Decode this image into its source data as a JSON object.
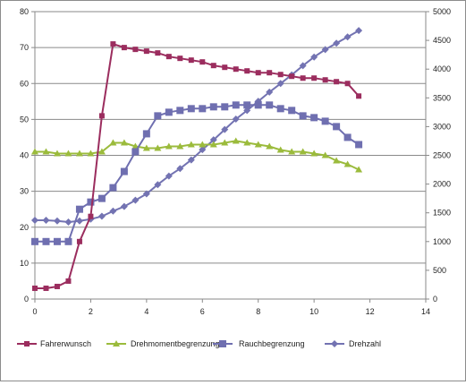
{
  "chart_data": {
    "type": "line",
    "title": "",
    "xlabel": "",
    "ylabel": "",
    "y2label": "",
    "xlim": [
      0,
      14
    ],
    "ylim": [
      0,
      80
    ],
    "y2lim": [
      0,
      5000
    ],
    "xticks": [
      "0",
      "2",
      "4",
      "6",
      "8",
      "10",
      "12",
      "14"
    ],
    "yticks": [
      "0",
      "10",
      "20",
      "30",
      "40",
      "50",
      "60",
      "70",
      "80"
    ],
    "y2ticks": [
      "0",
      "500",
      "1000",
      "1500",
      "2000",
      "2500",
      "3000",
      "3500",
      "4000",
      "4500",
      "5000"
    ],
    "grid": "horizontal",
    "legend_position": "bottom",
    "series": [
      {
        "name": "Fahrerwunsch",
        "axis": "left",
        "color": "#9b2d5e",
        "marker": "square",
        "x": [
          0,
          0.4,
          0.8,
          1.2,
          1.6,
          2.0,
          2.4,
          2.8,
          3.2,
          3.6,
          4.0,
          4.4,
          4.8,
          5.2,
          5.6,
          6.0,
          6.4,
          6.8,
          7.2,
          7.6,
          8.0,
          8.4,
          8.8,
          9.2,
          9.6,
          10.0,
          10.4,
          10.8,
          11.2,
          11.6
        ],
        "y": [
          3,
          3,
          3.5,
          5,
          16,
          23,
          51,
          71,
          70,
          69.5,
          69,
          68.5,
          67.5,
          67,
          66.5,
          66,
          65,
          64.5,
          64,
          63.5,
          63,
          63,
          62.5,
          62,
          61.5,
          61.5,
          61,
          60.5,
          60,
          56.5
        ]
      },
      {
        "name": "Drehmomentbegrenzung",
        "axis": "left",
        "color": "#9bbb3c",
        "marker": "triangle",
        "x": [
          0,
          0.4,
          0.8,
          1.2,
          1.6,
          2.0,
          2.4,
          2.8,
          3.2,
          3.6,
          4.0,
          4.4,
          4.8,
          5.2,
          5.6,
          6.0,
          6.4,
          6.8,
          7.2,
          7.6,
          8.0,
          8.4,
          8.8,
          9.2,
          9.6,
          10.0,
          10.4,
          10.8,
          11.2,
          11.6
        ],
        "y": [
          41,
          41,
          40.5,
          40.5,
          40.5,
          40.5,
          41,
          43.5,
          43.5,
          42.5,
          42,
          42,
          42.5,
          42.5,
          43,
          43,
          43,
          43.5,
          44,
          43.5,
          43,
          42.5,
          41.5,
          41,
          41,
          40.5,
          40,
          38.5,
          37.5,
          36
        ]
      },
      {
        "name": "Rauchbegrenzung",
        "axis": "left",
        "color": "#6f6fb0",
        "marker": "square-large",
        "x": [
          0,
          0.4,
          0.8,
          1.2,
          1.6,
          2.0,
          2.4,
          2.8,
          3.2,
          3.6,
          4.0,
          4.4,
          4.8,
          5.2,
          5.6,
          6.0,
          6.4,
          6.8,
          7.2,
          7.6,
          8.0,
          8.4,
          8.8,
          9.2,
          9.6,
          10.0,
          10.4,
          10.8,
          11.2,
          11.6
        ],
        "y": [
          16,
          16,
          16,
          16,
          25,
          27,
          28,
          31,
          35.5,
          41,
          46,
          51,
          52,
          52.5,
          53,
          53,
          53.5,
          53.5,
          54,
          54,
          54,
          54,
          53,
          52.5,
          51,
          50.5,
          49.5,
          48,
          45,
          43
        ]
      },
      {
        "name": "Drehzahl",
        "axis": "right",
        "color": "#7373b2",
        "marker": "diamond",
        "x": [
          0,
          0.4,
          0.8,
          1.2,
          1.6,
          2.0,
          2.4,
          2.8,
          3.2,
          3.6,
          4.0,
          4.4,
          4.8,
          5.2,
          5.6,
          6.0,
          6.4,
          6.8,
          7.2,
          7.6,
          8.0,
          8.4,
          8.8,
          9.2,
          9.6,
          10.0,
          10.4,
          10.8,
          11.2,
          11.6
        ],
        "y": [
          1370,
          1370,
          1360,
          1340,
          1360,
          1390,
          1440,
          1530,
          1610,
          1720,
          1830,
          1990,
          2140,
          2270,
          2420,
          2600,
          2770,
          2950,
          3130,
          3280,
          3440,
          3600,
          3750,
          3900,
          4060,
          4210,
          4340,
          4450,
          4560,
          4670
        ]
      }
    ]
  }
}
